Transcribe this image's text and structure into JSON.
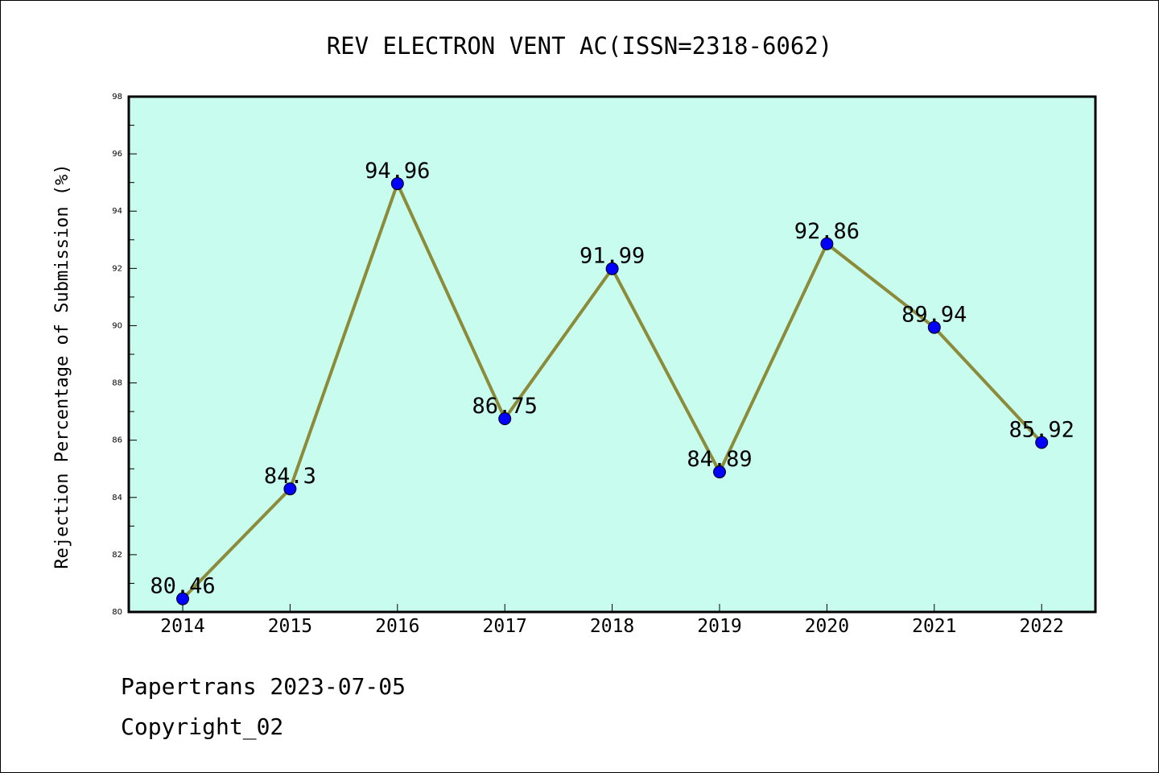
{
  "footer": {
    "line1": "Papertrans 2023-07-05",
    "line2": "Copyright_02"
  },
  "chart_data": {
    "type": "line",
    "title": "REV ELECTRON VENT AC(ISSN=2318-6062)",
    "xlabel": "",
    "ylabel": "Rejection Percentage of Submission (%)",
    "categories": [
      "2014",
      "2015",
      "2016",
      "2017",
      "2018",
      "2019",
      "2020",
      "2021",
      "2022"
    ],
    "values": [
      80.46,
      84.3,
      94.96,
      86.75,
      91.99,
      84.89,
      92.86,
      89.94,
      85.92
    ],
    "data_labels": [
      "80.46",
      "84.3",
      "94.96",
      "86.75",
      "91.99",
      "84.89",
      "92.86",
      "89.94",
      "85.92"
    ],
    "ylim": [
      80,
      98
    ],
    "yticks": [
      "80",
      "82",
      "84",
      "86",
      "88",
      "90",
      "92",
      "94",
      "96",
      "98"
    ],
    "grid": false,
    "legend": "none",
    "colors": {
      "plot_background": "#c8fcee",
      "line": "#8b8b3a",
      "marker": "#0000ff"
    }
  }
}
